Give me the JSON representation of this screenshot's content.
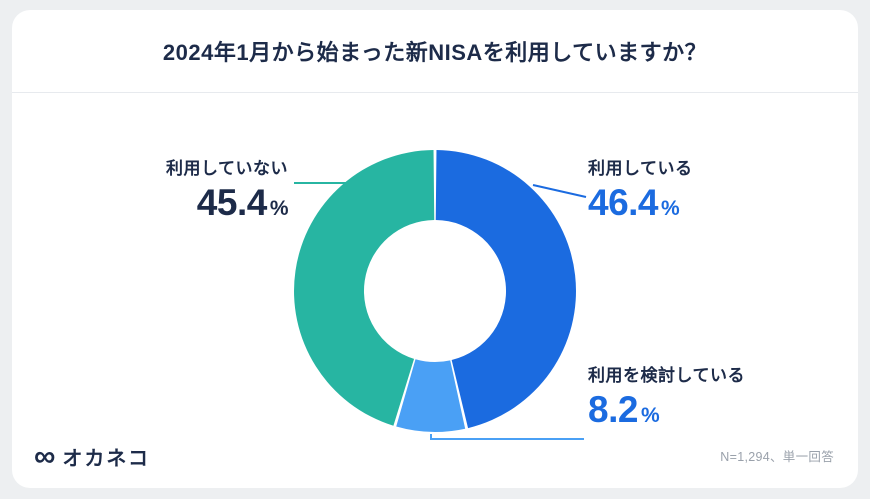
{
  "header": {
    "title": "2024年1月から始まった新NISAを利用していますか？"
  },
  "chart_data": {
    "type": "pie",
    "donut": true,
    "title": "2024年1月から始まった新NISAを利用していますか？",
    "unit": "%",
    "start_angle_deg": 0,
    "direction": "clockwise",
    "segments": [
      {
        "key": "using",
        "label": "利用している",
        "value": 46.4,
        "color": "#1b6be0"
      },
      {
        "key": "considering",
        "label": "利用を検討している",
        "value": 8.2,
        "color": "#4aa0f5"
      },
      {
        "key": "not-using",
        "label": "利用していない",
        "value": 45.4,
        "color": "#27b5a2"
      }
    ],
    "legend_position": "callout-labels",
    "note": "N=1,294、単一回答"
  },
  "footer": {
    "logo_icon": "∞",
    "logo_text": "オカネコ",
    "note": "N=1,294、単一回答"
  },
  "colors": {
    "accent_blue": "#1b6be0",
    "accent_light_blue": "#4aa0f5",
    "accent_teal": "#27b5a2",
    "navy_text": "#1d2b49",
    "page_background": "#edeff1",
    "card_background": "#ffffff",
    "muted_text": "#9aa1ab"
  }
}
